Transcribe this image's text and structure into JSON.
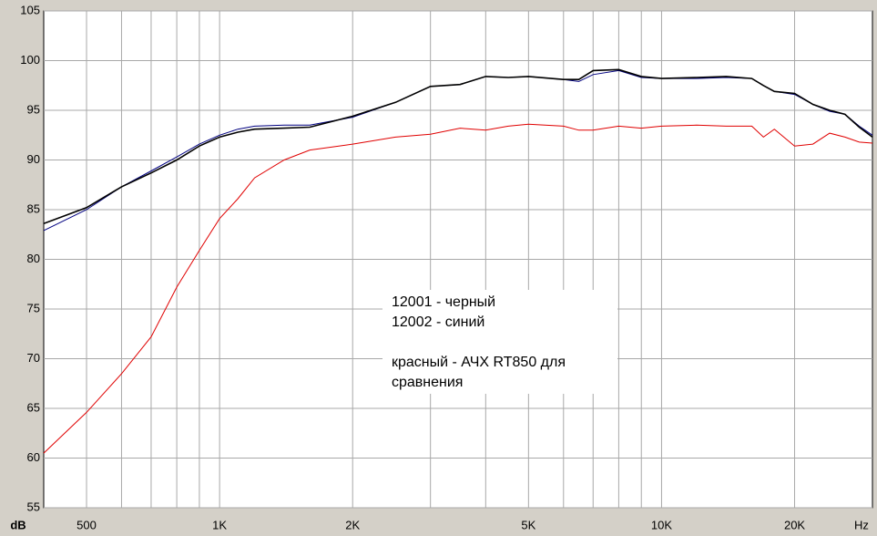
{
  "chart_data": {
    "type": "line",
    "xscale": "log",
    "xlabel": "Hz",
    "ylabel": "dB",
    "xlim": [
      400,
      30000
    ],
    "ylim": [
      55,
      105
    ],
    "xticks": [
      {
        "value": 500,
        "label": "500"
      },
      {
        "value": 1000,
        "label": "1K"
      },
      {
        "value": 2000,
        "label": "2K"
      },
      {
        "value": 5000,
        "label": "5K"
      },
      {
        "value": 10000,
        "label": "10K"
      },
      {
        "value": 20000,
        "label": "20K"
      }
    ],
    "xminor": [
      600,
      700,
      800,
      900,
      3000,
      4000,
      6000,
      7000,
      8000,
      9000
    ],
    "yticks": [
      55,
      60,
      65,
      70,
      75,
      80,
      85,
      90,
      95,
      100,
      105
    ],
    "grid": true,
    "x": [
      400,
      500,
      600,
      700,
      800,
      900,
      1000,
      1100,
      1200,
      1400,
      1600,
      2000,
      2500,
      3000,
      3500,
      4000,
      4500,
      5000,
      6000,
      6500,
      7000,
      8000,
      9000,
      10000,
      12000,
      14000,
      16000,
      17000,
      18000,
      20000,
      22000,
      24000,
      26000,
      28000,
      30000
    ],
    "series": [
      {
        "color": "#e00000",
        "values": [
          60.5,
          64.6,
          68.5,
          72.2,
          77.2,
          80.9,
          84.1,
          86.1,
          88.2,
          90.0,
          91.0,
          91.6,
          92.3,
          92.6,
          93.2,
          93.0,
          93.4,
          93.6,
          93.4,
          93.0,
          93.0,
          93.4,
          93.2,
          93.4,
          93.5,
          93.4,
          93.4,
          92.3,
          93.1,
          91.4,
          91.6,
          92.7,
          92.3,
          91.8,
          91.7
        ]
      },
      {
        "color": "#000080",
        "values": [
          82.9,
          85.0,
          87.3,
          88.9,
          90.3,
          91.6,
          92.5,
          93.1,
          93.4,
          93.5,
          93.5,
          94.3,
          95.8,
          97.4,
          97.6,
          98.4,
          98.3,
          98.4,
          98.1,
          97.9,
          98.6,
          99.0,
          98.3,
          98.2,
          98.2,
          98.3,
          98.2,
          97.5,
          96.9,
          96.6,
          95.6,
          94.9,
          94.6,
          93.4,
          92.5
        ]
      },
      {
        "color": "#000000",
        "values": [
          83.6,
          85.2,
          87.3,
          88.7,
          90.0,
          91.4,
          92.3,
          92.8,
          93.1,
          93.2,
          93.3,
          94.4,
          95.8,
          97.4,
          97.6,
          98.4,
          98.3,
          98.4,
          98.1,
          98.1,
          99.0,
          99.1,
          98.4,
          98.2,
          98.3,
          98.4,
          98.2,
          97.5,
          96.9,
          96.7,
          95.6,
          95.0,
          94.6,
          93.3,
          92.3
        ]
      }
    ],
    "annotation": {
      "legend_lines": [
        "12001 - черный",
        "12002 - синий"
      ],
      "note_lines": [
        "красный - АЧХ RT850 для",
        "сравнения"
      ]
    }
  }
}
